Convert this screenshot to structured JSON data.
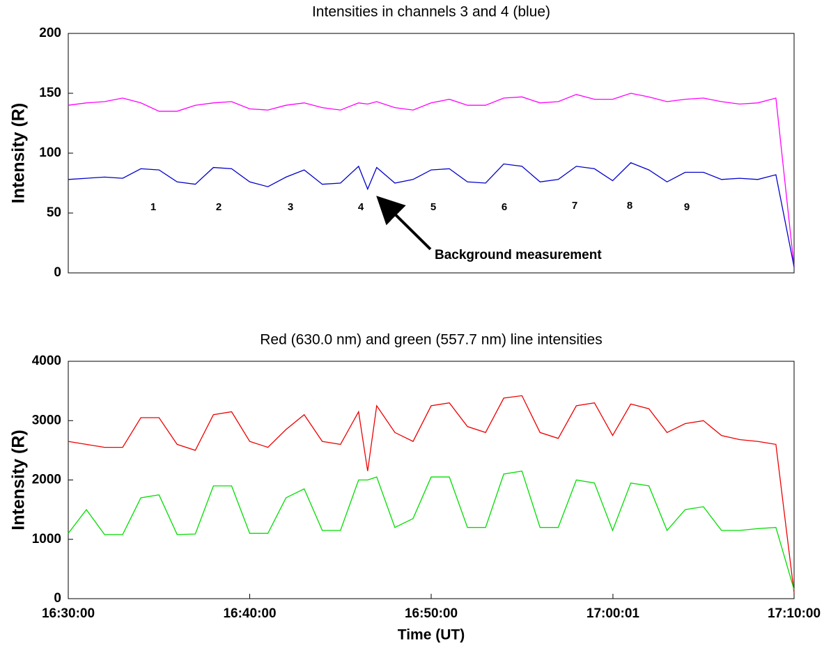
{
  "chart_data": [
    {
      "type": "line",
      "title": "Intensities in channels 3 and 4 (blue)",
      "ylabel": "Intensity (R)",
      "x": [
        "16:30:00",
        "16:31:00",
        "16:32:00",
        "16:33:00",
        "16:34:00",
        "16:35:00",
        "16:36:00",
        "16:37:00",
        "16:38:00",
        "16:39:00",
        "16:40:00",
        "16:41:00",
        "16:42:00",
        "16:43:00",
        "16:44:00",
        "16:45:00",
        "16:46:00",
        "16:46:30",
        "16:47:00",
        "16:48:00",
        "16:49:00",
        "16:50:00",
        "16:51:00",
        "16:52:00",
        "16:53:00",
        "16:54:00",
        "16:55:00",
        "16:56:00",
        "16:57:00",
        "16:58:00",
        "16:59:00",
        "17:00:00",
        "17:01:00",
        "17:02:00",
        "17:03:00",
        "17:04:00",
        "17:05:00",
        "17:06:00",
        "17:07:00",
        "17:08:00",
        "17:09:00",
        "17:10:00"
      ],
      "xlim": [
        "16:30:00",
        "17:10:00"
      ],
      "ylim": [
        0,
        200
      ],
      "yticks": [
        0,
        50,
        100,
        150,
        200
      ],
      "series": [
        {
          "color": "#ff00ff",
          "values": [
            140,
            142,
            143,
            146,
            142,
            135,
            135,
            140,
            142,
            143,
            137,
            136,
            140,
            142,
            138,
            136,
            142,
            141,
            143,
            138,
            136,
            142,
            145,
            140,
            140,
            146,
            147,
            142,
            143,
            149,
            145,
            145,
            150,
            147,
            143,
            145,
            146,
            143,
            141,
            142,
            146,
            5
          ]
        },
        {
          "color": "#0000cc",
          "values": [
            78,
            79,
            80,
            79,
            87,
            86,
            76,
            74,
            88,
            87,
            76,
            72,
            80,
            86,
            74,
            75,
            89,
            70,
            88,
            75,
            78,
            86,
            87,
            76,
            75,
            91,
            89,
            76,
            78,
            89,
            87,
            77,
            92,
            86,
            76,
            84,
            84,
            78,
            79,
            78,
            82,
            5
          ]
        }
      ],
      "annotations": [
        "1",
        "2",
        "3",
        "4",
        "5",
        "6",
        "7",
        "8",
        "9",
        "Background measurement"
      ]
    },
    {
      "type": "line",
      "title": "Red (630.0 nm) and green (557.7 nm) line intensities",
      "ylabel": "Intensity (R)",
      "xlabel": "Time (UT)",
      "x": [
        "16:30:00",
        "16:31:00",
        "16:32:00",
        "16:33:00",
        "16:34:00",
        "16:35:00",
        "16:36:00",
        "16:37:00",
        "16:38:00",
        "16:39:00",
        "16:40:00",
        "16:41:00",
        "16:42:00",
        "16:43:00",
        "16:44:00",
        "16:45:00",
        "16:46:00",
        "16:46:30",
        "16:47:00",
        "16:48:00",
        "16:49:00",
        "16:50:00",
        "16:51:00",
        "16:52:00",
        "16:53:00",
        "16:54:00",
        "16:55:00",
        "16:56:00",
        "16:57:00",
        "16:58:00",
        "16:59:00",
        "17:00:00",
        "17:01:00",
        "17:02:00",
        "17:03:00",
        "17:04:00",
        "17:05:00",
        "17:06:00",
        "17:07:00",
        "17:08:00",
        "17:09:00",
        "17:10:00"
      ],
      "xlim": [
        "16:30:00",
        "17:10:00"
      ],
      "xticks": [
        "16:30:00",
        "16:40:00",
        "16:50:00",
        "17:00:01",
        "17:10:00"
      ],
      "ylim": [
        0,
        4000
      ],
      "yticks": [
        0,
        1000,
        2000,
        3000,
        4000
      ],
      "series": [
        {
          "color": "#ee0000",
          "values": [
            2650,
            2600,
            2550,
            2550,
            3050,
            3050,
            2600,
            2500,
            3100,
            3150,
            2650,
            2550,
            2850,
            3100,
            2650,
            2600,
            3150,
            2150,
            3250,
            2800,
            2650,
            3250,
            3300,
            2900,
            2800,
            3380,
            3420,
            2800,
            2700,
            3250,
            3300,
            2750,
            3280,
            3200,
            2800,
            2950,
            3000,
            2750,
            2680,
            2650,
            2600,
            100
          ]
        },
        {
          "color": "#00dd00",
          "values": [
            1100,
            1500,
            1080,
            1080,
            1700,
            1750,
            1080,
            1090,
            1900,
            1900,
            1100,
            1100,
            1700,
            1850,
            1150,
            1150,
            2000,
            2000,
            2050,
            1200,
            1350,
            2050,
            2050,
            1200,
            1200,
            2100,
            2150,
            1200,
            1200,
            2000,
            1950,
            1150,
            1950,
            1900,
            1150,
            1500,
            1550,
            1150,
            1150,
            1180,
            1200,
            150
          ]
        }
      ]
    }
  ]
}
